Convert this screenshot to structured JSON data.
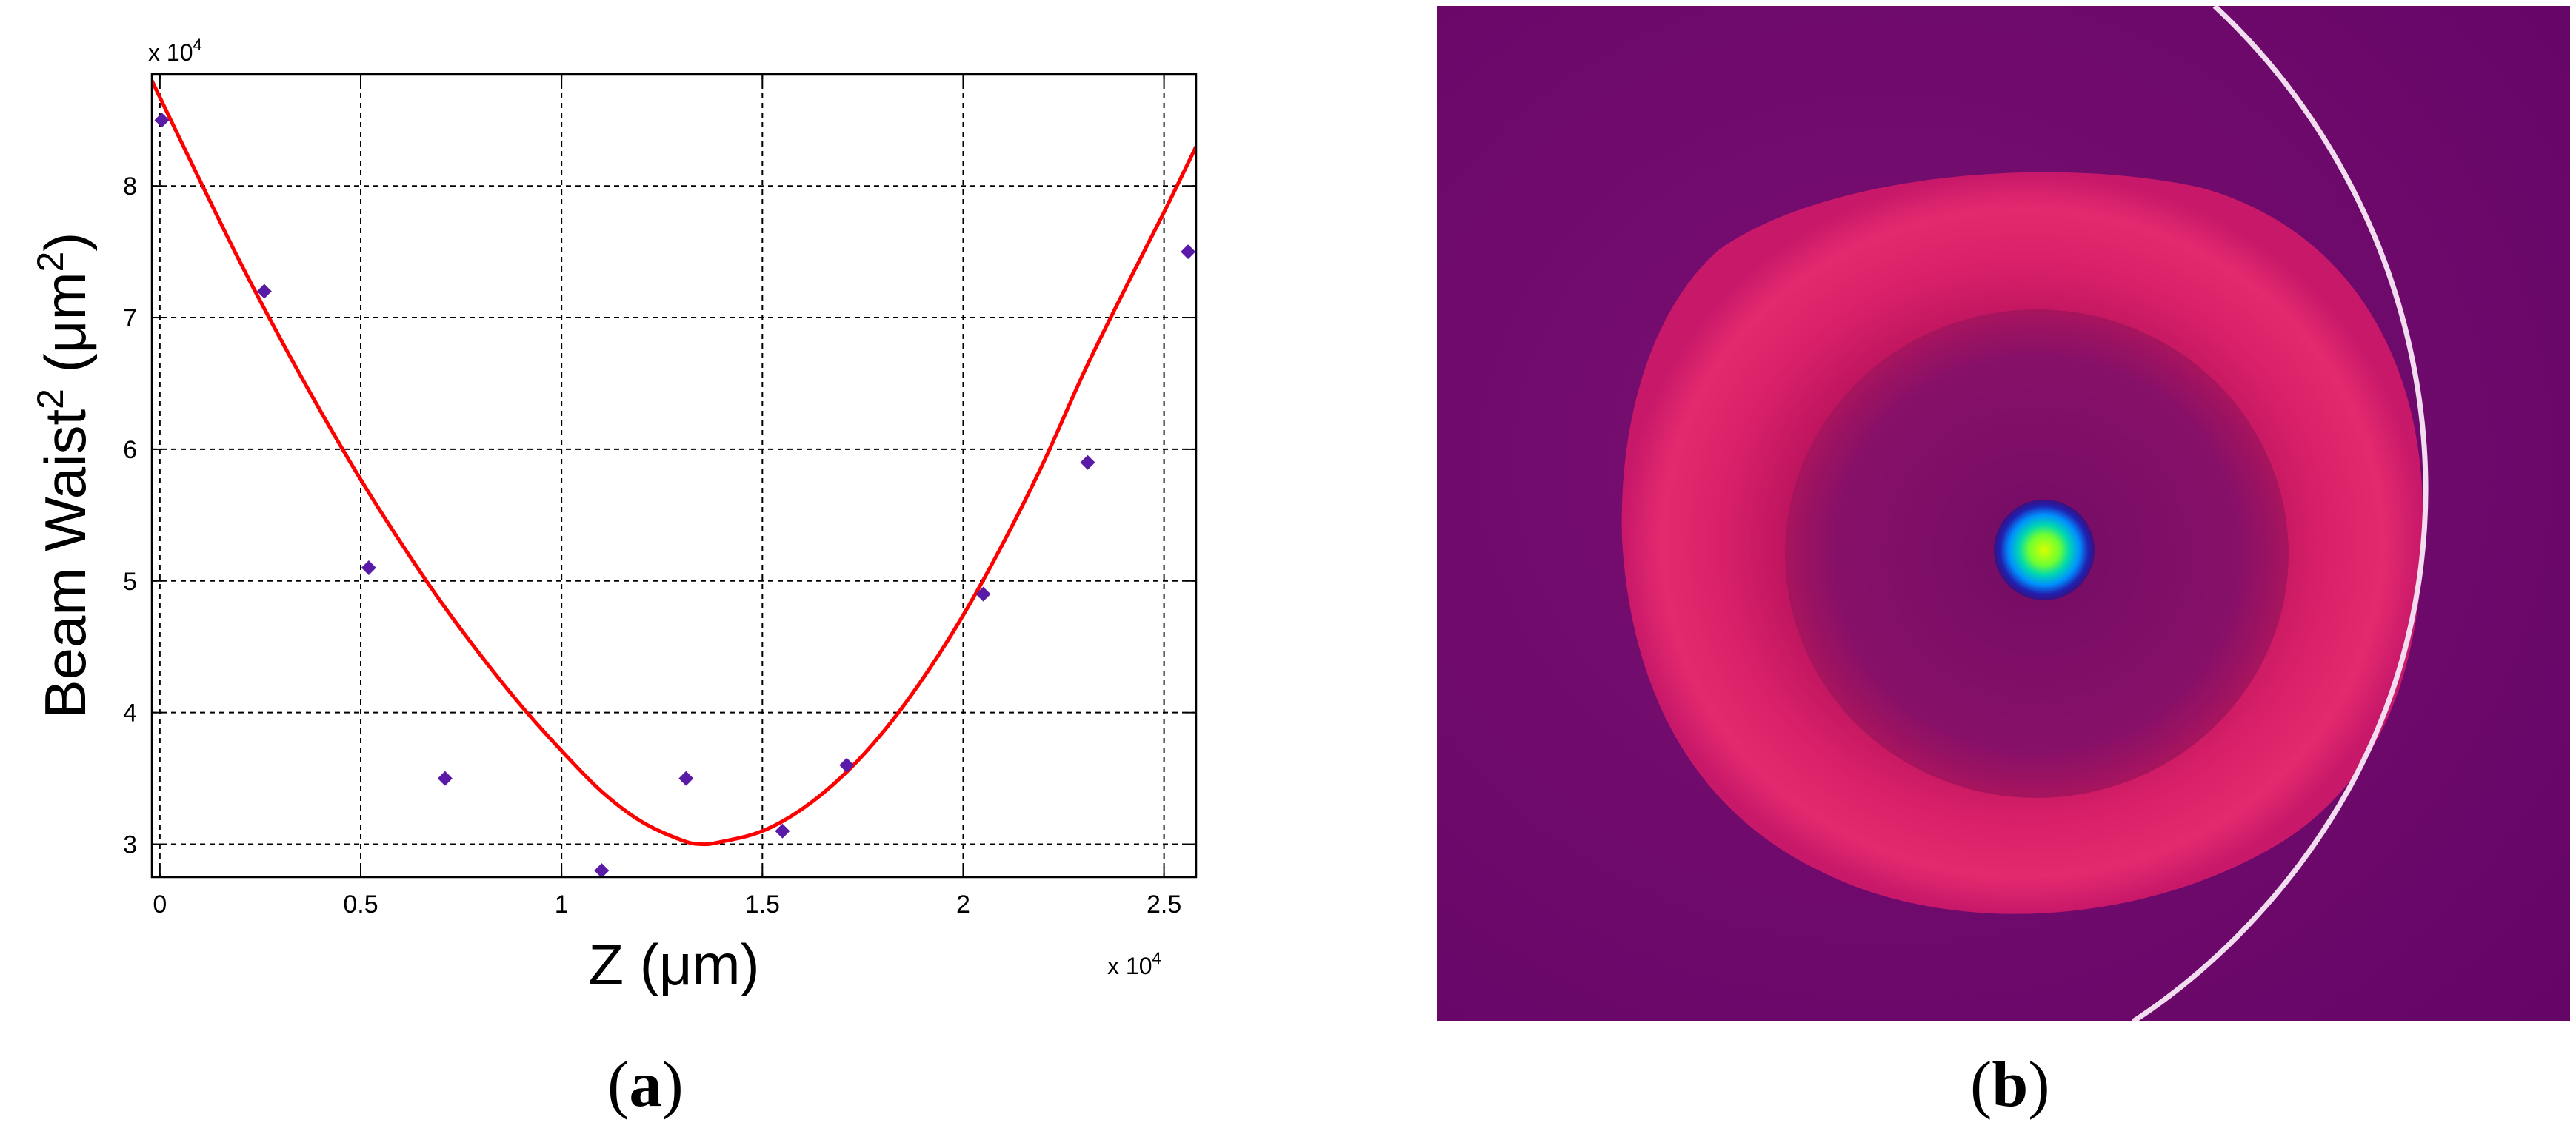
{
  "figure": {
    "panel_a": {
      "paren_open": "(",
      "letter": "a",
      "paren_close": ")"
    },
    "panel_b": {
      "paren_open": "(",
      "letter": "b",
      "paren_close": ")"
    }
  },
  "chart_data": {
    "type": "scatter",
    "x_multiplier_base": "x 10",
    "x_multiplier_exp": "4",
    "y_multiplier_base": "x 10",
    "y_multiplier_exp": "4",
    "xlabel": "Z (μm)",
    "ylabel_part1": "Beam Waist",
    "ylabel_sup1": "2",
    "ylabel_part2": " (μm",
    "ylabel_sup2": "2",
    "ylabel_part3": ")",
    "xlim": [
      -0.02,
      2.58
    ],
    "ylim": [
      2.75,
      8.85
    ],
    "xticks": [
      0,
      0.5,
      1,
      1.5,
      2,
      2.5
    ],
    "xtick_labels": [
      "0",
      "0.5",
      "1",
      "1.5",
      "2",
      "2.5"
    ],
    "yticks": [
      3,
      4,
      5,
      6,
      7,
      8
    ],
    "ytick_labels": [
      "3",
      "4",
      "5",
      "6",
      "7",
      "8"
    ],
    "grid": true,
    "series": [
      {
        "kind": "points",
        "color": "#5a1aa8",
        "x": [
          0.005,
          0.26,
          0.52,
          0.71,
          1.1,
          1.31,
          1.55,
          1.71,
          2.05,
          2.31,
          2.56
        ],
        "y": [
          8.5,
          7.2,
          5.1,
          3.5,
          2.8,
          3.5,
          3.1,
          3.6,
          4.9,
          5.9,
          7.5
        ]
      },
      {
        "kind": "fit_curve",
        "color": "#ff0000",
        "x": [
          -0.02,
          0.1,
          0.2,
          0.3,
          0.4,
          0.5,
          0.6,
          0.7,
          0.8,
          0.9,
          1.0,
          1.1,
          1.2,
          1.3,
          1.35,
          1.4,
          1.5,
          1.6,
          1.7,
          1.8,
          1.9,
          2.0,
          2.1,
          2.2,
          2.3,
          2.4,
          2.5,
          2.58
        ],
        "y": [
          8.8,
          8.04,
          7.42,
          6.84,
          6.29,
          5.77,
          5.29,
          4.84,
          4.43,
          4.05,
          3.71,
          3.4,
          3.17,
          3.03,
          3.0,
          3.02,
          3.1,
          3.27,
          3.52,
          3.85,
          4.26,
          4.74,
          5.29,
          5.9,
          6.58,
          7.2,
          7.8,
          8.3
        ]
      }
    ]
  },
  "image_panel": {
    "background_color": "#6a046a",
    "ring_color": "#e0386e",
    "spot_colors": [
      "#1a1aa0",
      "#00a0ff",
      "#00e0a0",
      "#b8ff00"
    ],
    "arc_color": "#f4dff2"
  }
}
